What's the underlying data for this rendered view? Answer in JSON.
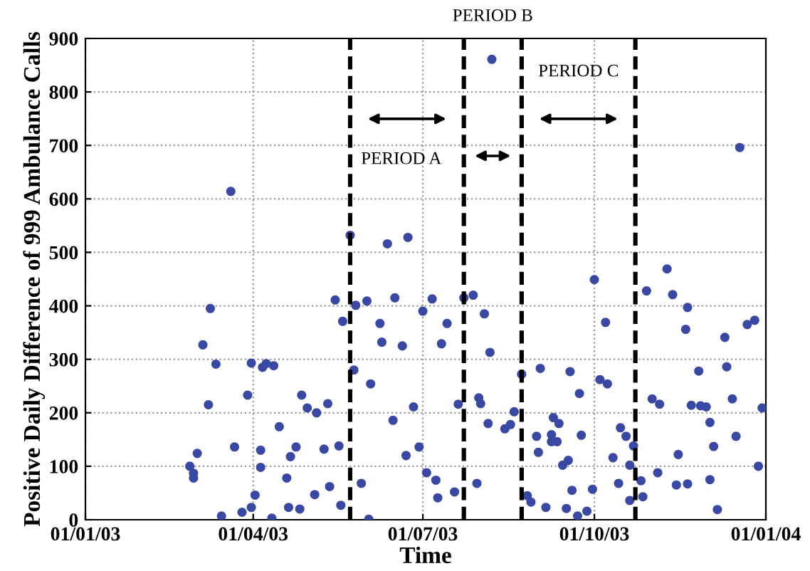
{
  "chart_data": {
    "type": "scatter",
    "xlabel": "Time",
    "ylabel": "Positive Daily Difference of 999 Ambulance Calls",
    "x": [
      "2003-02-26",
      "2003-02-28",
      "2003-02-28",
      "2003-03-02",
      "2003-03-05",
      "2003-03-08",
      "2003-03-09",
      "2003-03-12",
      "2003-03-15",
      "2003-03-20",
      "2003-03-22",
      "2003-03-26",
      "2003-03-29",
      "2003-03-31",
      "2003-03-31",
      "2003-04-02",
      "2003-04-05",
      "2003-04-05",
      "2003-04-06",
      "2003-04-08",
      "2003-04-12",
      "2003-04-11",
      "2003-04-15",
      "2003-04-19",
      "2003-04-20",
      "2003-04-21",
      "2003-04-24",
      "2003-04-26",
      "2003-04-27",
      "2003-04-30",
      "2003-05-04",
      "2003-05-05",
      "2003-05-09",
      "2003-05-11",
      "2003-05-12",
      "2003-05-15",
      "2003-05-17",
      "2003-05-18",
      "2003-05-19",
      "2003-05-23",
      "2003-05-25",
      "2003-05-26",
      "2003-05-29",
      "2003-06-01",
      "2003-06-02",
      "2003-06-03",
      "2003-06-08",
      "2003-06-09",
      "2003-06-12",
      "2003-06-15",
      "2003-06-16",
      "2003-06-20",
      "2003-06-22",
      "2003-06-23",
      "2003-06-26",
      "2003-06-29",
      "2003-07-01",
      "2003-07-03",
      "2003-07-06",
      "2003-07-08",
      "2003-07-09",
      "2003-07-11",
      "2003-07-14",
      "2003-07-18",
      "2003-07-20",
      "2003-07-23",
      "2003-07-28",
      "2003-07-30",
      "2003-07-31",
      "2003-08-01",
      "2003-08-03",
      "2003-08-05",
      "2003-08-06",
      "2003-08-07",
      "2003-08-14",
      "2003-08-17",
      "2003-08-19",
      "2003-08-23",
      "2003-08-26",
      "2003-08-28",
      "2003-08-31",
      "2003-09-01",
      "2003-09-02",
      "2003-09-05",
      "2003-09-08",
      "2003-09-09",
      "2003-09-11",
      "2003-09-12",
      "2003-09-08",
      "2003-09-14",
      "2003-09-17",
      "2003-09-16",
      "2003-09-18",
      "2003-09-19",
      "2003-09-22",
      "2003-09-23",
      "2003-09-24",
      "2003-09-27",
      "2003-09-30",
      "2003-10-01",
      "2003-10-04",
      "2003-10-07",
      "2003-10-08",
      "2003-10-11",
      "2003-10-14",
      "2003-10-15",
      "2003-10-18",
      "2003-10-20",
      "2003-10-20",
      "2003-10-22",
      "2003-10-26",
      "2003-10-27",
      "2003-10-29",
      "2003-11-01",
      "2003-11-04",
      "2003-11-05",
      "2003-11-09",
      "2003-11-12",
      "2003-11-14",
      "2003-11-15",
      "2003-11-19",
      "2003-11-20",
      "2003-11-20",
      "2003-11-22",
      "2003-11-26",
      "2003-11-27",
      "2003-11-30",
      "2003-12-02",
      "2003-12-02",
      "2003-12-04",
      "2003-12-06",
      "2003-12-10",
      "2003-12-11",
      "2003-12-14",
      "2003-12-16",
      "2003-12-18",
      "2003-12-22",
      "2003-12-26",
      "2003-12-28",
      "2003-12-30"
    ],
    "values": [
      100,
      87,
      78,
      124,
      327,
      215,
      395,
      291,
      7,
      614,
      136,
      14,
      233,
      293,
      23,
      46,
      130,
      98,
      285,
      292,
      288,
      3,
      174,
      78,
      23,
      118,
      136,
      20,
      233,
      209,
      47,
      200,
      132,
      217,
      62,
      411,
      138,
      27,
      371,
      532,
      280,
      401,
      68,
      409,
      1,
      254,
      367,
      332,
      516,
      186,
      415,
      325,
      120,
      528,
      211,
      136,
      390,
      88,
      413,
      74,
      41,
      329,
      367,
      52,
      216,
      415,
      420,
      68,
      228,
      217,
      385,
      180,
      313,
      861,
      170,
      178,
      202,
      272,
      45,
      33,
      156,
      126,
      283,
      23,
      159,
      191,
      146,
      180,
      146,
      102,
      111,
      21,
      277,
      55,
      7,
      236,
      158,
      16,
      57,
      449,
      262,
      369,
      254,
      116,
      68,
      172,
      156,
      102,
      36,
      138,
      73,
      43,
      428,
      226,
      88,
      216,
      469,
      421,
      65,
      122,
      356,
      397,
      67,
      214,
      278,
      213,
      211,
      75,
      182,
      137,
      19,
      341,
      286,
      226,
      156,
      696,
      365,
      373,
      100,
      209
    ],
    "color": "#3949a3",
    "marker": "circle",
    "xlim": [
      "2003-01-01",
      "2004-01-01"
    ],
    "xticks": [
      {
        "value": "2003-01-01",
        "label": "01/01/03"
      },
      {
        "value": "2003-04-01",
        "label": "01/04/03"
      },
      {
        "value": "2003-07-01",
        "label": "01/07/03"
      },
      {
        "value": "2003-10-01",
        "label": "01/10/03"
      },
      {
        "value": "2004-01-01",
        "label": "01/01/04"
      }
    ],
    "ylim": [
      0,
      900
    ],
    "yticks": [
      0,
      100,
      200,
      300,
      400,
      500,
      600,
      700,
      800,
      900
    ],
    "grid": true,
    "ref_lines": [
      {
        "axis": "x",
        "value": "2003-05-23",
        "color": "#000000",
        "line_style": "dashed"
      },
      {
        "axis": "x",
        "value": "2003-07-23",
        "color": "#000000",
        "line_style": "dashed"
      },
      {
        "axis": "x",
        "value": "2003-08-23",
        "color": "#000000",
        "line_style": "dashed"
      },
      {
        "axis": "x",
        "value": "2003-10-23",
        "color": "#000000",
        "line_style": "dashed"
      }
    ],
    "annotations": [
      "PERIOD A",
      "PERIOD B",
      "PERIOD C"
    ]
  }
}
